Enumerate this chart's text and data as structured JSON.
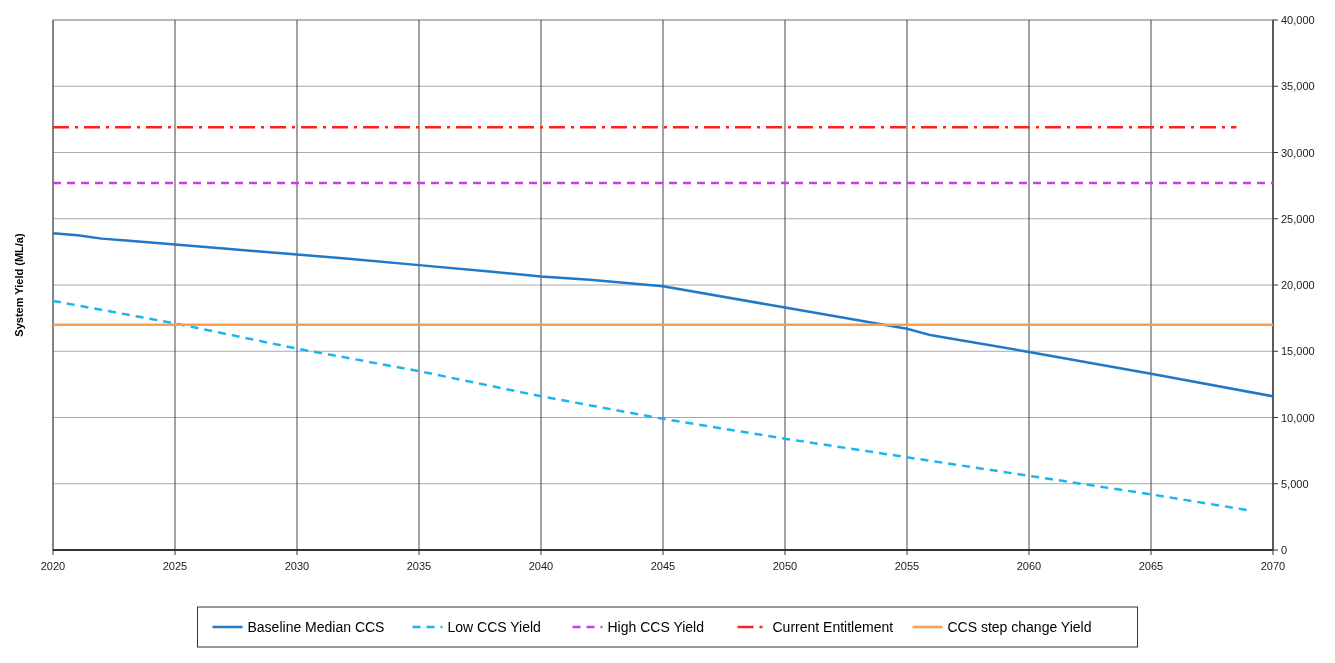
{
  "chart_data": {
    "type": "line",
    "ylabel": "System Yield (ML/a)",
    "xlim": [
      2020,
      2070
    ],
    "xticks": [
      2020,
      2025,
      2030,
      2035,
      2040,
      2045,
      2050,
      2055,
      2060,
      2065,
      2070
    ],
    "ylim": [
      0,
      40000
    ],
    "yticks": [
      {
        "value": 0,
        "label": "0"
      },
      {
        "value": 5000,
        "label": "5,000"
      },
      {
        "value": 10000,
        "label": "10,000"
      },
      {
        "value": 15000,
        "label": "15,000"
      },
      {
        "value": 20000,
        "label": "20,000"
      },
      {
        "value": 25000,
        "label": "25,000"
      },
      {
        "value": 30000,
        "label": "30,000"
      },
      {
        "value": 35000,
        "label": "35,000"
      },
      {
        "value": 40000,
        "label": "40,000"
      }
    ],
    "grid": true,
    "legend": "bottom",
    "series": [
      {
        "name": "Baseline Median CCS",
        "color": "#1f78c8",
        "line_style": "solid",
        "x": [
          2020,
          2021,
          2022,
          2023,
          2025,
          2027,
          2030,
          2032,
          2035,
          2038,
          2040,
          2042,
          2045,
          2050,
          2055,
          2056,
          2060,
          2065,
          2070
        ],
        "values": [
          23900,
          23750,
          23500,
          23350,
          23050,
          22750,
          22300,
          22000,
          21500,
          21000,
          20650,
          20400,
          19900,
          18300,
          16700,
          16200,
          14950,
          13300,
          11600
        ]
      },
      {
        "name": "Low CCS Yield",
        "color": "#1eb4f0",
        "line_style": "dashed",
        "x": [
          2020,
          2025,
          2030,
          2035,
          2040,
          2045,
          2050,
          2055,
          2060,
          2065,
          2069
        ],
        "values": [
          18800,
          17100,
          15200,
          13500,
          11600,
          9900,
          8400,
          7000,
          5600,
          4200,
          3000
        ]
      },
      {
        "name": "High CCS Yield",
        "color": "#c83cf0",
        "line_style": "dashed",
        "x": [
          2020,
          2070
        ],
        "values": [
          27700,
          27700
        ]
      },
      {
        "name": "Current Entitlement",
        "color": "#ff2020",
        "line_style": "dashdot",
        "x": [
          2020,
          2068.5
        ],
        "values": [
          31900,
          31900
        ]
      },
      {
        "name": "CCS step change Yield",
        "color": "#f5a050",
        "line_style": "solid",
        "x": [
          2020,
          2070
        ],
        "values": [
          17000,
          17000
        ]
      }
    ]
  }
}
